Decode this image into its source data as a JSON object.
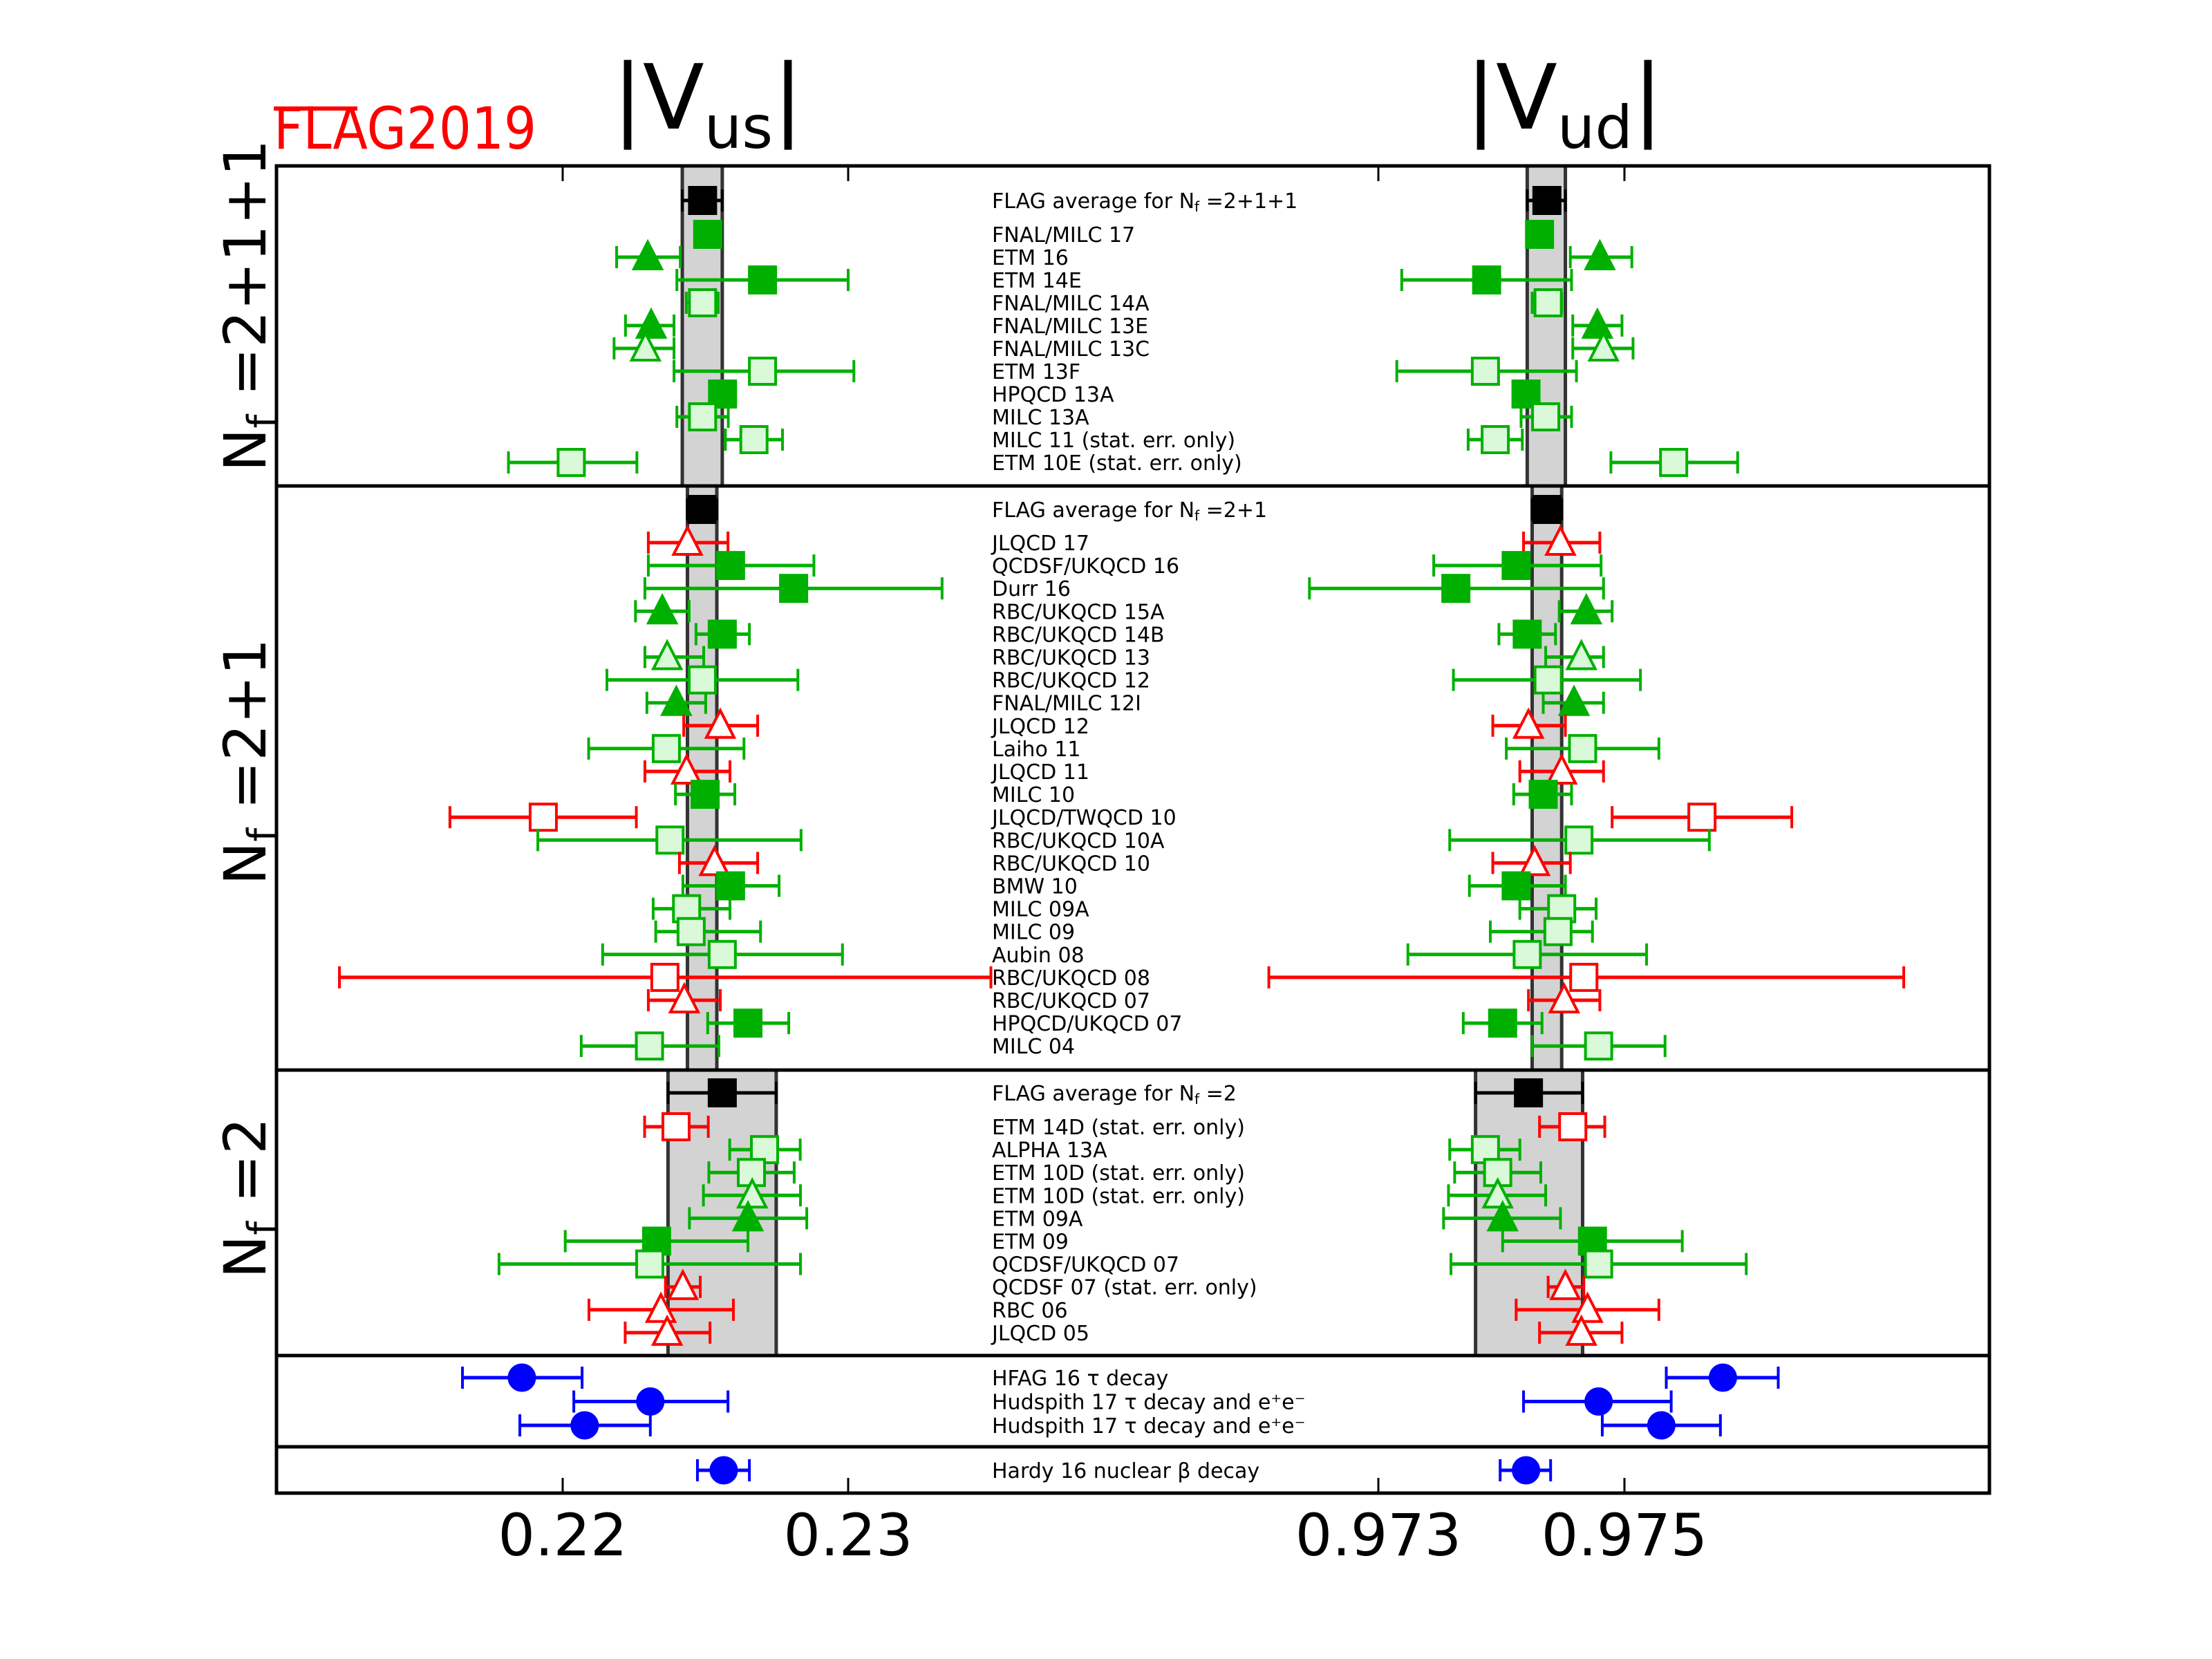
{
  "colors": {
    "green": "#00b000",
    "light_green_fill": "#d9f9d9",
    "red": "#ff0000",
    "blue": "#0000ff",
    "black": "#000000",
    "band_fill": "#d3d3d3",
    "band_edge": "#333333",
    "logo": "#ff0000"
  },
  "logo": {
    "text": "FLAG2019"
  },
  "chart_data": {
    "type": "scatter",
    "subtype": "forest plot with horizontal error bars",
    "title": "FLAG2019",
    "grid": false,
    "legend": "none",
    "x_axes": [
      {
        "key": "vus",
        "label_pre": "|V",
        "label_sub": "us",
        "label_post": "|",
        "ticks": [
          0.22,
          0.23
        ],
        "tick_labels": [
          "0.22",
          "0.23"
        ]
      },
      {
        "key": "vud",
        "label_pre": "|V",
        "label_sub": "ud",
        "label_post": "|",
        "ticks": [
          0.973,
          0.975
        ],
        "tick_labels": [
          "0.973",
          "0.975"
        ]
      }
    ],
    "marker_legend": {
      "filled-square": "filled green square",
      "light-square": "light green square",
      "filled-triangle": "filled green triangle",
      "light-triangle": "light green triangle",
      "red-square": "open red square",
      "red-triangle": "open red triangle",
      "blue-circle": "blue circle",
      "average": "black square with grey band"
    },
    "panels": [
      {
        "ylabel": {
          "pre": "N",
          "sub": "f",
          "post": " =2+1+1"
        },
        "average": {
          "label_pre": "FLAG average for N",
          "label_sub": "f",
          "label_post": " =2+1+1",
          "vus": [
            0.2249,
            0.22419,
            0.22559
          ],
          "vud": [
            0.97437,
            0.97421,
            0.97452
          ]
        },
        "entries": [
          {
            "label": "FNAL/MILC 17",
            "style": "filled-square",
            "vus": [
              0.22508,
              0.22497,
              0.22519
            ],
            "vud": [
              0.97431,
              0.97427,
              0.97435
            ]
          },
          {
            "label": "ETM 16",
            "style": "filled-triangle",
            "vus": [
              0.22298,
              0.22189,
              0.22412
            ],
            "vud": [
              0.9748,
              0.97456,
              0.97506
            ]
          },
          {
            "label": "ETM 14E",
            "style": "filled-square",
            "vus": [
              0.227,
              0.224,
              0.23
            ],
            "vud": [
              0.97388,
              0.97319,
              0.97457
            ]
          },
          {
            "label": "FNAL/MILC 14A",
            "style": "light-square",
            "vus": [
              0.2249,
              0.22433,
              0.22545
            ],
            "vud": [
              0.97438,
              0.97425,
              0.97449
            ]
          },
          {
            "label": "FNAL/MILC 13E",
            "style": "filled-triangle",
            "vus": [
              0.2231,
              0.2222,
              0.2239
            ],
            "vud": [
              0.97478,
              0.97458,
              0.97498
            ]
          },
          {
            "label": "FNAL/MILC 13C",
            "style": "light-triangle",
            "vus": [
              0.2229,
              0.2218,
              0.2239
            ],
            "vud": [
              0.97483,
              0.97458,
              0.97507
            ]
          },
          {
            "label": "ETM 13F",
            "style": "light-square",
            "vus": [
              0.227,
              0.2239,
              0.2302
            ],
            "vud": [
              0.97387,
              0.97315,
              0.97461
            ]
          },
          {
            "label": "HPQCD 13A",
            "style": "filled-square",
            "vus": [
              0.2256,
              0.2255,
              0.2257
            ],
            "vud": [
              0.9742,
              0.97412,
              0.97428
            ]
          },
          {
            "label": "MILC 13A",
            "style": "light-square",
            "vus": [
              0.2249,
              0.224,
              0.2258
            ],
            "vud": [
              0.97436,
              0.97416,
              0.97457
            ]
          },
          {
            "label": "MILC 11 (stat. err. only)",
            "style": "light-square",
            "vus": [
              0.2267,
              0.2257,
              0.2277
            ],
            "vud": [
              0.97395,
              0.97373,
              0.97417
            ]
          },
          {
            "label": "ETM 10E (stat. err. only)",
            "style": "light-square",
            "vus": [
              0.2203,
              0.2181,
              0.2226
            ],
            "vud": [
              0.9754,
              0.97489,
              0.97592
            ]
          }
        ]
      },
      {
        "ylabel": {
          "pre": "N",
          "sub": "f",
          "post": " =2+1"
        },
        "average": {
          "label_pre": "FLAG average for N",
          "label_sub": "f",
          "label_post": " =2+1",
          "vus": [
            0.22488,
            0.22437,
            0.2254
          ],
          "vud": [
            0.97437,
            0.97425,
            0.97449
          ]
        },
        "entries": [
          {
            "label": "JLQCD 17",
            "style": "red-triangle",
            "vus": [
              0.22437,
              0.223,
              0.22579
            ],
            "vud": [
              0.97448,
              0.97418,
              0.9748
            ]
          },
          {
            "label": "QCDSF/UKQCD 16",
            "style": "filled-square",
            "vus": [
              0.22588,
              0.223,
              0.2288
            ],
            "vud": [
              0.97412,
              0.97345,
              0.97481
            ]
          },
          {
            "label": "Durr 16",
            "style": "filled-square",
            "vus": [
              0.22809,
              0.22288,
              0.23329
            ],
            "vud": [
              0.97363,
              0.97244,
              0.97483
            ]
          },
          {
            "label": "RBC/UKQCD 15A",
            "style": "filled-triangle",
            "vus": [
              0.22349,
              0.22255,
              0.22443
            ],
            "vud": [
              0.97469,
              0.97447,
              0.9749
            ]
          },
          {
            "label": "RBC/UKQCD 14B",
            "style": "filled-square",
            "vus": [
              0.22559,
              0.22467,
              0.22654
            ],
            "vud": [
              0.97421,
              0.97398,
              0.97444
            ]
          },
          {
            "label": "RBC/UKQCD 13",
            "style": "light-triangle",
            "vus": [
              0.22366,
              0.22288,
              0.22494
            ],
            "vud": [
              0.97465,
              0.97436,
              0.97483
            ]
          },
          {
            "label": "RBC/UKQCD 12",
            "style": "light-square",
            "vus": [
              0.22489,
              0.22155,
              0.22824
            ],
            "vud": [
              0.97438,
              0.97361,
              0.97513
            ]
          },
          {
            "label": "FNAL/MILC 12I",
            "style": "filled-triangle",
            "vus": [
              0.22398,
              0.22295,
              0.22501
            ],
            "vud": [
              0.97459,
              0.97434,
              0.97483
            ]
          },
          {
            "label": "JLQCD 12",
            "style": "red-triangle",
            "vus": [
              0.22552,
              0.22424,
              0.22683
            ],
            "vud": [
              0.97422,
              0.97393,
              0.97452
            ]
          },
          {
            "label": "Laiho 11",
            "style": "light-square",
            "vus": [
              0.22363,
              0.22091,
              0.22635
            ],
            "vud": [
              0.97466,
              0.97404,
              0.97528
            ]
          },
          {
            "label": "JLQCD 11",
            "style": "red-triangle",
            "vus": [
              0.22434,
              0.22288,
              0.22586
            ],
            "vud": [
              0.97449,
              0.97415,
              0.97483
            ]
          },
          {
            "label": "MILC 10",
            "style": "filled-square",
            "vus": [
              0.22499,
              0.22395,
              0.22603
            ],
            "vud": [
              0.97434,
              0.9741,
              0.97457
            ]
          },
          {
            "label": "JLQCD/TWQCD 10",
            "style": "red-square",
            "vus": [
              0.21932,
              0.21605,
              0.22258
            ],
            "vud": [
              0.97563,
              0.9749,
              0.97636
            ]
          },
          {
            "label": "RBC/UKQCD 10A",
            "style": "light-square",
            "vus": [
              0.22376,
              0.21913,
              0.22835
            ],
            "vud": [
              0.97463,
              0.97358,
              0.97569
            ]
          },
          {
            "label": "RBC/UKQCD 10",
            "style": "red-triangle",
            "vus": [
              0.22532,
              0.22409,
              0.22683
            ],
            "vud": [
              0.97427,
              0.97393,
              0.97456
            ]
          },
          {
            "label": "BMW 10",
            "style": "filled-square",
            "vus": [
              0.22588,
              0.22421,
              0.22758
            ],
            "vud": [
              0.97412,
              0.97374,
              0.97452
            ]
          },
          {
            "label": "MILC 09A",
            "style": "light-square",
            "vus": [
              0.22434,
              0.22317,
              0.22586
            ],
            "vud": [
              0.97449,
              0.97415,
              0.97477
            ]
          },
          {
            "label": "MILC 09",
            "style": "light-square",
            "vus": [
              0.2245,
              0.22326,
              0.22693
            ],
            "vud": [
              0.97446,
              0.97391,
              0.97474
            ]
          },
          {
            "label": "Aubin 08",
            "style": "light-square",
            "vus": [
              0.22559,
              0.2214,
              0.2298
            ],
            "vud": [
              0.97421,
              0.97324,
              0.97518
            ]
          },
          {
            "label": "RBC/UKQCD 08",
            "style": "red-square",
            "vus": [
              0.22358,
              0.21218,
              0.235
            ],
            "vud": [
              0.97467,
              0.97211,
              0.97727
            ]
          },
          {
            "label": "RBC/UKQCD 07",
            "style": "red-triangle",
            "vus": [
              0.22426,
              0.223,
              0.22552
            ],
            "vud": [
              0.97451,
              0.97422,
              0.9748
            ]
          },
          {
            "label": "HPQCD/UKQCD 07",
            "style": "filled-square",
            "vus": [
              0.22649,
              0.22508,
              0.22792
            ],
            "vud": [
              0.97401,
              0.97369,
              0.97433
            ]
          },
          {
            "label": "MILC 04",
            "style": "light-square",
            "vus": [
              0.22304,
              0.22065,
              0.22547
            ],
            "vud": [
              0.97479,
              0.97425,
              0.97533
            ]
          }
        ]
      },
      {
        "ylabel": {
          "pre": "N",
          "sub": "f",
          "post": " =2"
        },
        "average": {
          "label_pre": "FLAG average for N",
          "label_sub": "f",
          "label_post": " =2",
          "vus": [
            0.22559,
            0.22369,
            0.22748
          ],
          "vud": [
            0.97422,
            0.97379,
            0.97466
          ]
        },
        "entries": [
          {
            "label": "ETM 14D (stat. err. only)",
            "style": "red-square",
            "vus": [
              0.22397,
              0.22287,
              0.2251
            ],
            "vud": [
              0.97458,
              0.97431,
              0.97484
            ]
          },
          {
            "label": "ALPHA 13A",
            "style": "light-square",
            "vus": [
              0.22707,
              0.22585,
              0.22832
            ],
            "vud": [
              0.97387,
              0.97358,
              0.97415
            ]
          },
          {
            "label": "ETM 10D (stat. err. only)",
            "style": "light-square",
            "vus": [
              0.22661,
              0.22512,
              0.22811
            ],
            "vud": [
              0.97397,
              0.97362,
              0.97432
            ]
          },
          {
            "label": "ETM 10D (stat. err. only)",
            "style": "light-triangle",
            "vus": [
              0.22664,
              0.22493,
              0.22833
            ],
            "vud": [
              0.97397,
              0.97357,
              0.97436
            ]
          },
          {
            "label": "ETM 09A",
            "style": "filled-triangle",
            "vus": [
              0.22649,
              0.22444,
              0.22855
            ],
            "vud": [
              0.97401,
              0.97353,
              0.97448
            ]
          },
          {
            "label": "ETM 09",
            "style": "filled-square",
            "vus": [
              0.22329,
              0.22009,
              0.22649
            ],
            "vud": [
              0.97474,
              0.97401,
              0.97547
            ]
          },
          {
            "label": "QCDSF/UKQCD 07",
            "style": "light-square",
            "vus": [
              0.22305,
              0.21777,
              0.22833
            ],
            "vud": [
              0.97479,
              0.97359,
              0.97599
            ]
          },
          {
            "label": "QCDSF 07 (stat. err. only)",
            "style": "red-triangle",
            "vus": [
              0.22421,
              0.2236,
              0.22482
            ],
            "vud": [
              0.97452,
              0.97438,
              0.97467
            ]
          },
          {
            "label": "RBC 06",
            "style": "red-triangle",
            "vus": [
              0.22344,
              0.22092,
              0.22598
            ],
            "vud": [
              0.9747,
              0.97412,
              0.97528
            ]
          },
          {
            "label": "JLQCD 05",
            "style": "red-triangle",
            "vus": [
              0.22366,
              0.22219,
              0.22516
            ],
            "vud": [
              0.97465,
              0.97431,
              0.97498
            ]
          }
        ]
      },
      {
        "ylabel": null,
        "average": null,
        "entries": [
          {
            "label": "HFAG 16 τ decay",
            "style": "blue-circle",
            "vus": [
              0.21857,
              0.21649,
              0.22068
            ],
            "vud": [
              0.9758,
              0.97534,
              0.97625
            ]
          },
          {
            "label": "Hudspith 17 τ decay and e⁺e⁻",
            "style": "blue-circle",
            "vus": [
              0.22307,
              0.22039,
              0.22579
            ],
            "vud": [
              0.97479,
              0.97418,
              0.97538
            ]
          },
          {
            "label": "Hudspith 17 τ decay and e⁺e⁻",
            "style": "blue-circle",
            "vus": [
              0.22077,
              0.2185,
              0.22307
            ],
            "vud": [
              0.9753,
              0.97482,
              0.97578
            ]
          }
        ]
      },
      {
        "ylabel": null,
        "average": null,
        "entries": [
          {
            "label": "Hardy 16 nuclear β decay",
            "style": "blue-circle",
            "vus": [
              0.22564,
              0.22472,
              0.22654
            ],
            "vud": [
              0.9742,
              0.97399,
              0.9744
            ]
          }
        ]
      }
    ]
  }
}
